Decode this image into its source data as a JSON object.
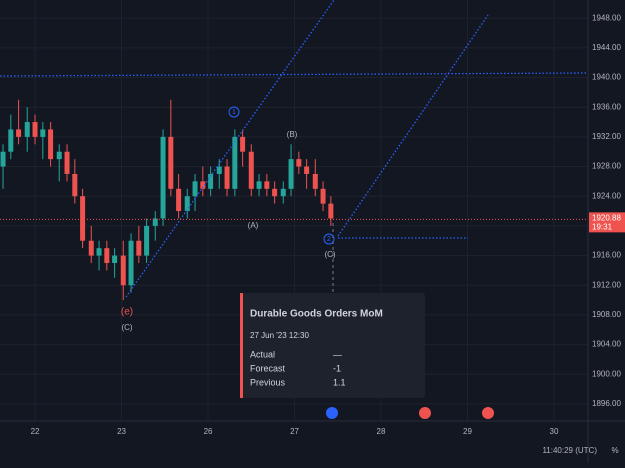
{
  "chart_data": {
    "type": "candlestick",
    "x": [
      -0.37,
      -0.28,
      -0.19,
      -0.09,
      0.0,
      0.09,
      0.18,
      0.28,
      0.37,
      0.46,
      0.55,
      0.65,
      0.74,
      0.83,
      0.92,
      1.02,
      1.11,
      1.2,
      1.29,
      1.39,
      1.48,
      1.57,
      1.66,
      1.76,
      1.85,
      1.94,
      2.03,
      2.13,
      2.22,
      2.31,
      2.4,
      2.5,
      2.59,
      2.68,
      2.77,
      2.87,
      2.96,
      3.05,
      3.14,
      3.24,
      3.33,
      3.42
    ],
    "open": [
      1928,
      1930,
      1933,
      1932,
      1934,
      1932,
      1933,
      1929,
      1930,
      1927,
      1924,
      1918,
      1916,
      1917,
      1915,
      1916,
      1912,
      1918,
      1916,
      1920,
      1921,
      1932,
      1925,
      1922,
      1924,
      1926,
      1925,
      1927,
      1928,
      1925,
      1932,
      1930,
      1925,
      1926,
      1925,
      1924,
      1925,
      1929,
      1928,
      1927,
      1925,
      1923
    ],
    "high": [
      1931,
      1935,
      1937,
      1936,
      1935,
      1934,
      1934,
      1931,
      1931,
      1929,
      1925,
      1920,
      1918,
      1918,
      1917,
      1918,
      1919,
      1920,
      1921,
      1922,
      1933,
      1937,
      1927,
      1925,
      1927,
      1928,
      1928,
      1929,
      1929,
      1933,
      1933,
      1931,
      1927,
      1927,
      1926,
      1926,
      1931,
      1930,
      1929,
      1929,
      1926,
      1924
    ],
    "low": [
      1925,
      1929,
      1931,
      1930,
      1931,
      1929,
      1928,
      1926,
      1926,
      1923,
      1917,
      1915,
      1914,
      1914,
      1913,
      1910,
      1911,
      1915,
      1915,
      1918,
      1920,
      1924,
      1921,
      1921,
      1922,
      1924,
      1924,
      1925,
      1924,
      1924,
      1928,
      1924,
      1924,
      1924,
      1923,
      1923,
      1924,
      1927,
      1925,
      1924,
      1922,
      1920
    ],
    "close": [
      1930,
      1933,
      1932,
      1934,
      1932,
      1933,
      1929,
      1930,
      1927,
      1924,
      1918,
      1916,
      1917,
      1915,
      1916,
      1912,
      1918,
      1916,
      1920,
      1921,
      1932,
      1925,
      1922,
      1924,
      1926,
      1925,
      1927,
      1928,
      1925,
      1932,
      1930,
      1925,
      1926,
      1925,
      1924,
      1925,
      1929,
      1928,
      1927,
      1925,
      1923,
      1921
    ],
    "up_color": "#26a69a",
    "down_color": "#ef5350",
    "ylim": [
      1893.7,
      1950.45
    ],
    "yticks": [
      {
        "value": 1896,
        "label": "1896.00"
      },
      {
        "value": 1900,
        "label": "1900.00"
      },
      {
        "value": 1904,
        "label": "1904.00"
      },
      {
        "value": 1908,
        "label": "1908.00"
      },
      {
        "value": 1912,
        "label": "1912.00"
      },
      {
        "value": 1916,
        "label": "1916.00"
      },
      {
        "value": 1920,
        "label": "1920.00"
      },
      {
        "value": 1924,
        "label": "1924.00"
      },
      {
        "value": 1928,
        "label": "1928.00"
      },
      {
        "value": 1932,
        "label": "1932.00"
      },
      {
        "value": 1936,
        "label": "1936.00"
      },
      {
        "value": 1940,
        "label": "1940.00"
      },
      {
        "value": 1944,
        "label": "1944.00"
      },
      {
        "value": 1948,
        "label": "1948.00"
      }
    ],
    "xlim": [
      -0.405,
      6.393
    ],
    "xticks": [
      {
        "value": 0,
        "label": "22"
      },
      {
        "value": 1,
        "label": "23"
      },
      {
        "value": 2,
        "label": "26"
      },
      {
        "value": 3,
        "label": "27"
      },
      {
        "value": 4,
        "label": "28"
      },
      {
        "value": 5,
        "label": "29"
      },
      {
        "value": 6,
        "label": "30"
      }
    ],
    "grid": true,
    "last_price": 1920.88,
    "countdown": "19:31",
    "annotations": [
      "(e)",
      "(C)",
      "1",
      "(A)",
      "(B)",
      "2",
      "(C)"
    ],
    "event": {
      "title": "Durable Goods Orders MoM",
      "date": "27 Jun '23 12:30",
      "rows": [
        {
          "label": "Actual",
          "value": "—"
        },
        {
          "label": "Forecast",
          "value": "-1"
        },
        {
          "label": "Previous",
          "value": "1.1"
        }
      ]
    },
    "clock": "11:40:29 (UTC)",
    "percent": "%"
  }
}
